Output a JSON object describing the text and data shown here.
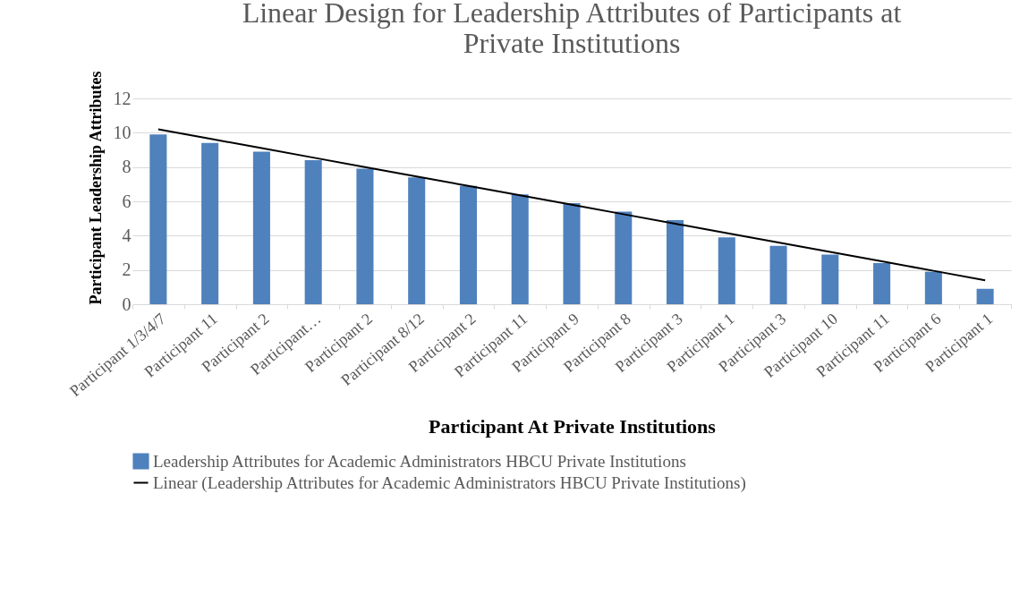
{
  "chart_data": {
    "type": "bar",
    "title": "Linear Design for Leadership Attributes of Participants at Private Institutions",
    "xlabel": "Participant At Private Institutions",
    "ylabel": "Participant Leadership Attributes",
    "categories": [
      "Participant 1/3/4/7",
      "Participant 11",
      "Participant 2",
      "Participant…",
      "Participant 2",
      "Participant 8/12",
      "Participant 2",
      "Participant 11",
      "Participant 9",
      "Participant 8",
      "Participant 3",
      "Participant 1",
      "Participant 3",
      "Participant 10",
      "Participant 11",
      "Participant 6",
      "Participant 1"
    ],
    "series": [
      {
        "name": "Leadership Attributes for Academic Administrators HBCU Private Institutions",
        "color": "#4f81bd",
        "values": [
          9.9,
          9.4,
          8.9,
          8.4,
          7.9,
          7.4,
          6.9,
          6.4,
          5.9,
          5.4,
          4.9,
          3.9,
          3.4,
          2.9,
          2.4,
          1.9,
          0.9
        ]
      },
      {
        "name": "Linear (Leadership Attributes for Academic Administrators HBCU Private Institutions)",
        "type": "line",
        "color": "#000000",
        "values": [
          10.2,
          9.65,
          9.1,
          8.55,
          8.0,
          7.45,
          6.9,
          6.35,
          5.8,
          5.25,
          4.7,
          4.15,
          3.6,
          3.05,
          2.5,
          1.95,
          1.4
        ]
      }
    ],
    "ylim": [
      0,
      12
    ],
    "yticks": [
      0,
      2,
      4,
      6,
      8,
      10,
      12
    ],
    "grid": "y",
    "legend": "bottom"
  }
}
